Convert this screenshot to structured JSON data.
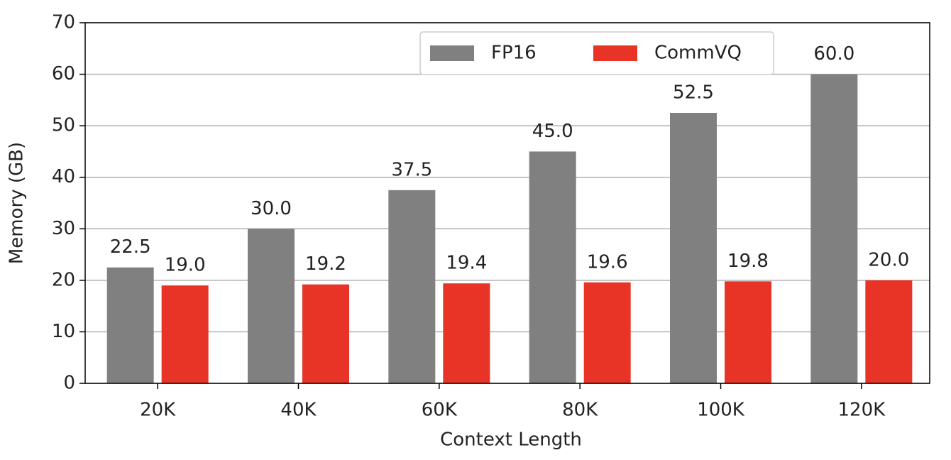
{
  "chart_data": {
    "type": "bar",
    "x_label": "Context Length",
    "y_label": "Memory (GB)",
    "categories": [
      "20K",
      "40K",
      "60K",
      "80K",
      "100K",
      "120K"
    ],
    "series": [
      {
        "name": "FP16",
        "color": "#808080",
        "values": [
          22.5,
          30.0,
          37.5,
          45.0,
          52.5,
          60.0
        ],
        "value_labels": [
          "22.5",
          "30.0",
          "37.5",
          "45.0",
          "52.5",
          "60.0"
        ]
      },
      {
        "name": "CommVQ",
        "color": "#e83426",
        "values": [
          19.0,
          19.2,
          19.4,
          19.6,
          19.8,
          20.0
        ],
        "value_labels": [
          "19.0",
          "19.2",
          "19.4",
          "19.6",
          "19.8",
          "20.0"
        ]
      }
    ],
    "ylim": [
      0,
      70
    ],
    "yticks": [
      0,
      10,
      20,
      30,
      40,
      50,
      60,
      70
    ],
    "grid": true,
    "legend": "upper center"
  }
}
